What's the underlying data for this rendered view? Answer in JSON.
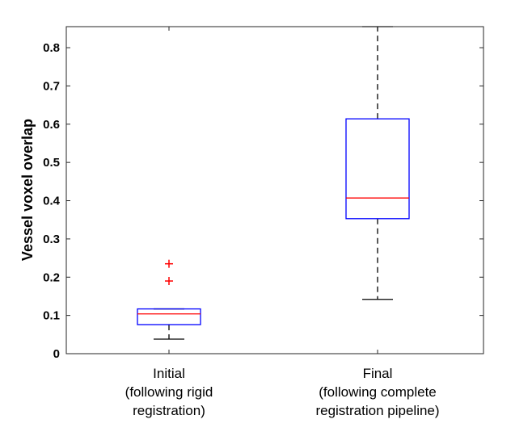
{
  "chart_data": {
    "type": "box",
    "title": "",
    "xlabel": "",
    "ylabel": "Vessel voxel overlap",
    "ylim": [
      0,
      0.855
    ],
    "yticks": [
      0,
      0.1,
      0.2,
      0.3,
      0.4,
      0.5,
      0.6,
      0.7,
      0.8
    ],
    "ytick_labels": [
      "0",
      "0.1",
      "0.2",
      "0.3",
      "0.4",
      "0.5",
      "0.6",
      "0.7",
      "0.8"
    ],
    "grid": false,
    "categories": [
      {
        "label_lines": [
          "Initial",
          "(following rigid",
          "registration)"
        ],
        "whisker_low": 0.038,
        "q1": 0.076,
        "median": 0.104,
        "q3": 0.117,
        "whisker_high": 0.117,
        "outliers": [
          0.19,
          0.235
        ]
      },
      {
        "label_lines": [
          "Final",
          "(following complete",
          "registration pipeline)"
        ],
        "whisker_low": 0.142,
        "q1": 0.353,
        "median": 0.407,
        "q3": 0.614,
        "whisker_high": 0.855,
        "outliers": []
      }
    ],
    "colors": {
      "box": "#0000ff",
      "median": "#ff0000",
      "whisker": "#000000",
      "outlier": "#ff0000",
      "axes": "#262626"
    }
  }
}
